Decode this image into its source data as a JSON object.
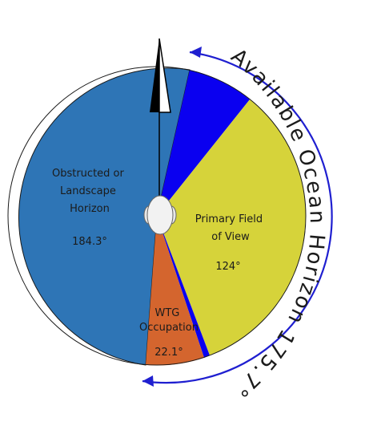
{
  "diagram": {
    "arc_caption": "Available Ocean Horizon 175.7°",
    "segments": [
      {
        "id": "obstructed",
        "label_lines": [
          "Obstructed or",
          "Landscape",
          "Horizon"
        ],
        "value": "184.3°",
        "color": "#2e75b6"
      },
      {
        "id": "primary",
        "label_lines": [
          "Primary Field",
          "of View"
        ],
        "value": "124°",
        "color": "#d6d33a"
      },
      {
        "id": "wtg",
        "label_lines": [
          "WTG",
          "Occupation"
        ],
        "value": "22.1°",
        "color": "#d4652e"
      },
      {
        "id": "ocean-north",
        "label_lines": [],
        "value": "",
        "color": "#0a00f0"
      }
    ],
    "colors": {
      "arc": "#1f1fd0",
      "outline": "#1a1a1a",
      "north_arrow": "#000000"
    },
    "icons": [
      "north-arrow-icon",
      "observer-head-icon"
    ]
  }
}
